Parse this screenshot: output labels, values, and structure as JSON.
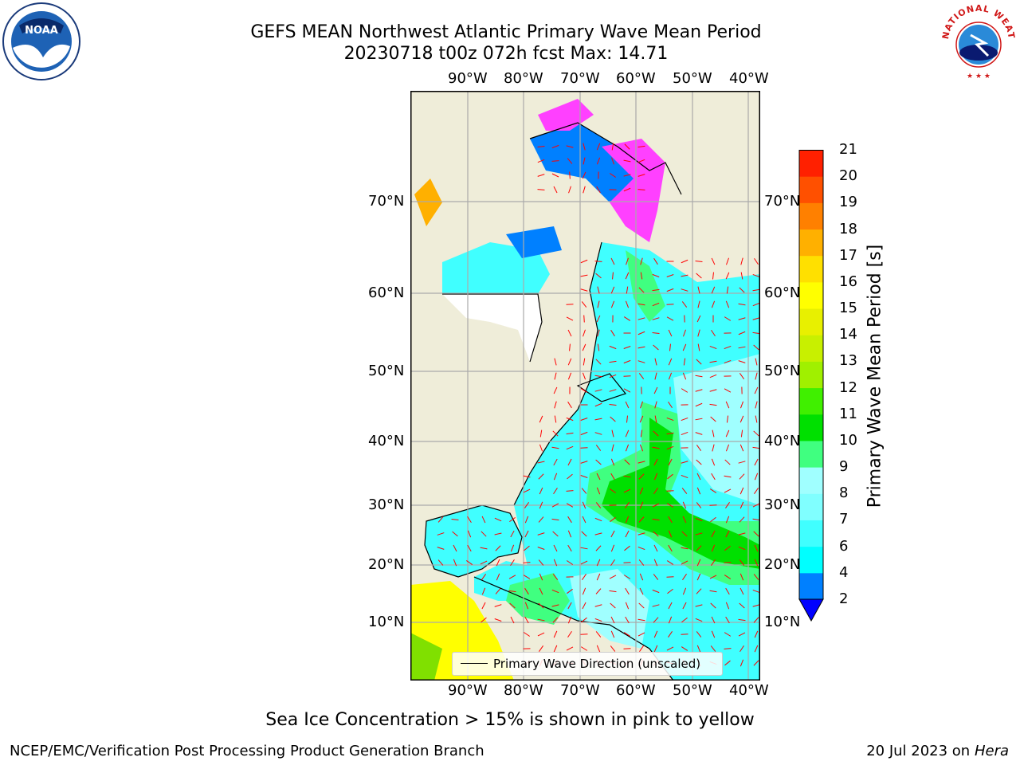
{
  "header": {
    "title_line1": "GEFS MEAN Northwest Atlantic Primary Wave Mean Period",
    "title_line2": "20230718 t00z 072h fcst   Max: 14.71"
  },
  "logos": {
    "left_icon": "noaa-logo-icon",
    "left_text": "NOAA",
    "right_icon": "national-weather-service-logo-icon",
    "right_text": "NATIONAL WEATHER SERVICE"
  },
  "map": {
    "lon_ticks": [
      "90°W",
      "80°W",
      "70°W",
      "60°W",
      "50°W",
      "40°W"
    ],
    "lat_ticks": [
      "70°N",
      "60°N",
      "50°N",
      "40°N",
      "30°N",
      "20°N",
      "10°N"
    ],
    "legend_label": "Primary Wave Direction (unscaled)",
    "colors": {
      "land": "#efedd9",
      "ocean_low": "#0080ff",
      "ocean_mid": "#00ffff",
      "ocean_pale": "#a0ffff",
      "green_light": "#40ff80",
      "green": "#00e000",
      "yellow": "#ffff00",
      "ice_pink": "#ff40ff",
      "arrow": "#ff0000"
    }
  },
  "colorbar": {
    "label": "Primary Wave Mean Period [s]",
    "ticks": [
      "2",
      "4",
      "6",
      "7",
      "8",
      "9",
      "10",
      "11",
      "12",
      "13",
      "14",
      "15",
      "16",
      "17",
      "18",
      "19",
      "20",
      "21"
    ],
    "colors": [
      "#0080ff",
      "#00ffff",
      "#40ffff",
      "#80ffff",
      "#a0ffff",
      "#40ff80",
      "#00e000",
      "#40f000",
      "#a0f000",
      "#c8f000",
      "#e8f000",
      "#ffff00",
      "#ffe000",
      "#ffb000",
      "#ff8000",
      "#ff5000",
      "#ff2000"
    ],
    "under_color": "#0000ff"
  },
  "notes": {
    "sea_ice": "Sea Ice Concentration > 15% is shown in pink to yellow"
  },
  "footer": {
    "left": "NCEP/EMC/Verification Post Processing Product Generation Branch",
    "right_date": "20 Jul 2023 on ",
    "right_machine": "Hera"
  }
}
